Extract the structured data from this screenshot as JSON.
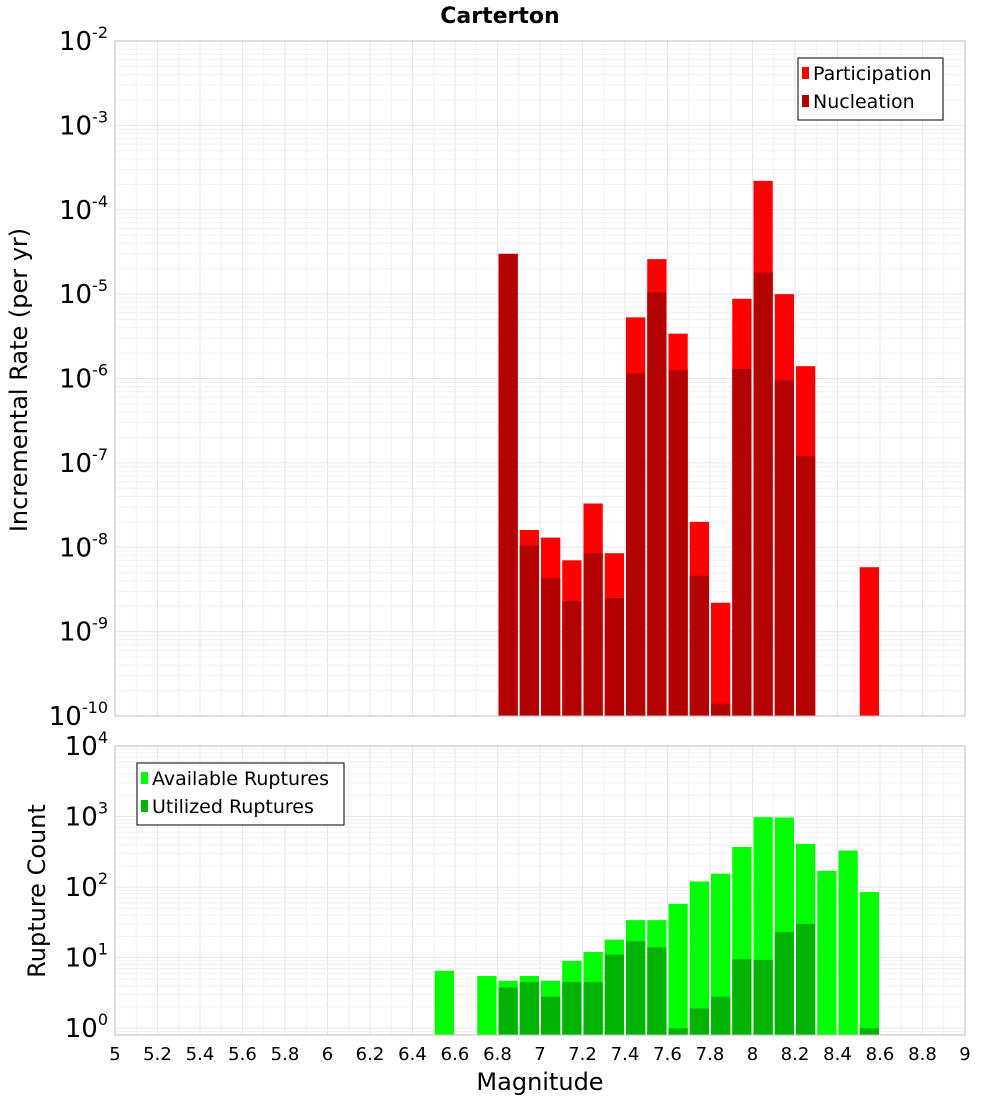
{
  "chart_data": [
    {
      "type": "bar",
      "title": "Carterton",
      "xlabel": "",
      "ylabel": "Incremental Rate (per yr)",
      "yscale": "log",
      "ylim": [
        1e-10,
        0.01
      ],
      "xlim": [
        5,
        9
      ],
      "y_ticks": [
        {
          "base": "10",
          "exp": "-10"
        },
        {
          "base": "10",
          "exp": "-9"
        },
        {
          "base": "10",
          "exp": "-8"
        },
        {
          "base": "10",
          "exp": "-7"
        },
        {
          "base": "10",
          "exp": "-6"
        },
        {
          "base": "10",
          "exp": "-5"
        },
        {
          "base": "10",
          "exp": "-4"
        },
        {
          "base": "10",
          "exp": "-3"
        },
        {
          "base": "10",
          "exp": "-2"
        }
      ],
      "legend_position": "top-right",
      "series": [
        {
          "name": "Participation",
          "color": "#ff0000",
          "x": [
            6.85,
            6.95,
            7.05,
            7.15,
            7.25,
            7.35,
            7.45,
            7.55,
            7.65,
            7.75,
            7.85,
            7.95,
            8.05,
            8.15,
            8.25,
            8.55
          ],
          "values": [
            3e-05,
            1.6e-08,
            1.3e-08,
            7e-09,
            3.3e-08,
            8.5e-09,
            5.3e-06,
            2.6e-05,
            3.4e-06,
            2e-08,
            2.2e-09,
            8.8e-06,
            0.00022,
            1e-05,
            1.4e-06,
            5.8e-09
          ]
        },
        {
          "name": "Nucleation",
          "color": "#b30000",
          "x": [
            6.85,
            6.95,
            7.05,
            7.15,
            7.25,
            7.35,
            7.45,
            7.55,
            7.65,
            7.75,
            7.85,
            7.95,
            8.05,
            8.15,
            8.25
          ],
          "values": [
            3e-05,
            1.05e-08,
            4.3e-09,
            2.3e-09,
            8.5e-09,
            2.5e-09,
            1.15e-06,
            1.05e-05,
            1.25e-06,
            4.6e-09,
            1.4e-10,
            1.3e-06,
            1.8e-05,
            9.5e-07,
            1.2e-07
          ]
        }
      ]
    },
    {
      "type": "bar",
      "title": "",
      "xlabel": "Magnitude",
      "ylabel": "Rupture Count",
      "yscale": "log",
      "ylim": [
        0.8,
        10000
      ],
      "xlim": [
        5,
        9
      ],
      "x_ticks": [
        "5",
        "5.2",
        "5.4",
        "5.6",
        "5.8",
        "6",
        "6.2",
        "6.4",
        "6.6",
        "6.8",
        "7",
        "7.2",
        "7.4",
        "7.6",
        "7.8",
        "8",
        "8.2",
        "8.4",
        "8.6",
        "8.8",
        "9"
      ],
      "y_ticks": [
        {
          "base": "10",
          "exp": "0"
        },
        {
          "base": "10",
          "exp": "1"
        },
        {
          "base": "10",
          "exp": "2"
        },
        {
          "base": "10",
          "exp": "3"
        },
        {
          "base": "10",
          "exp": "4"
        }
      ],
      "legend_position": "top-left",
      "series": [
        {
          "name": "Available Ruptures",
          "color": "#00ff00",
          "x": [
            6.55,
            6.75,
            6.85,
            6.95,
            7.05,
            7.15,
            7.25,
            7.35,
            7.45,
            7.55,
            7.65,
            7.75,
            7.85,
            7.95,
            8.05,
            8.15,
            8.25,
            8.35,
            8.45,
            8.55
          ],
          "values": [
            6.5,
            5.5,
            4.7,
            5.5,
            4.7,
            9.0,
            12,
            18,
            34,
            34,
            58,
            120,
            155,
            370,
            980,
            970,
            410,
            170,
            330,
            85
          ]
        },
        {
          "name": "Utilized Ruptures",
          "color": "#00b300",
          "x": [
            6.85,
            6.95,
            7.05,
            7.15,
            7.25,
            7.35,
            7.45,
            7.55,
            7.65,
            7.75,
            7.85,
            7.95,
            8.05,
            8.15,
            8.25,
            8.55
          ],
          "values": [
            3.8,
            4.5,
            2.8,
            4.5,
            4.5,
            11,
            17,
            14,
            1.0,
            1.9,
            2.8,
            9.5,
            9.3,
            23,
            30,
            1.0
          ]
        }
      ]
    }
  ]
}
